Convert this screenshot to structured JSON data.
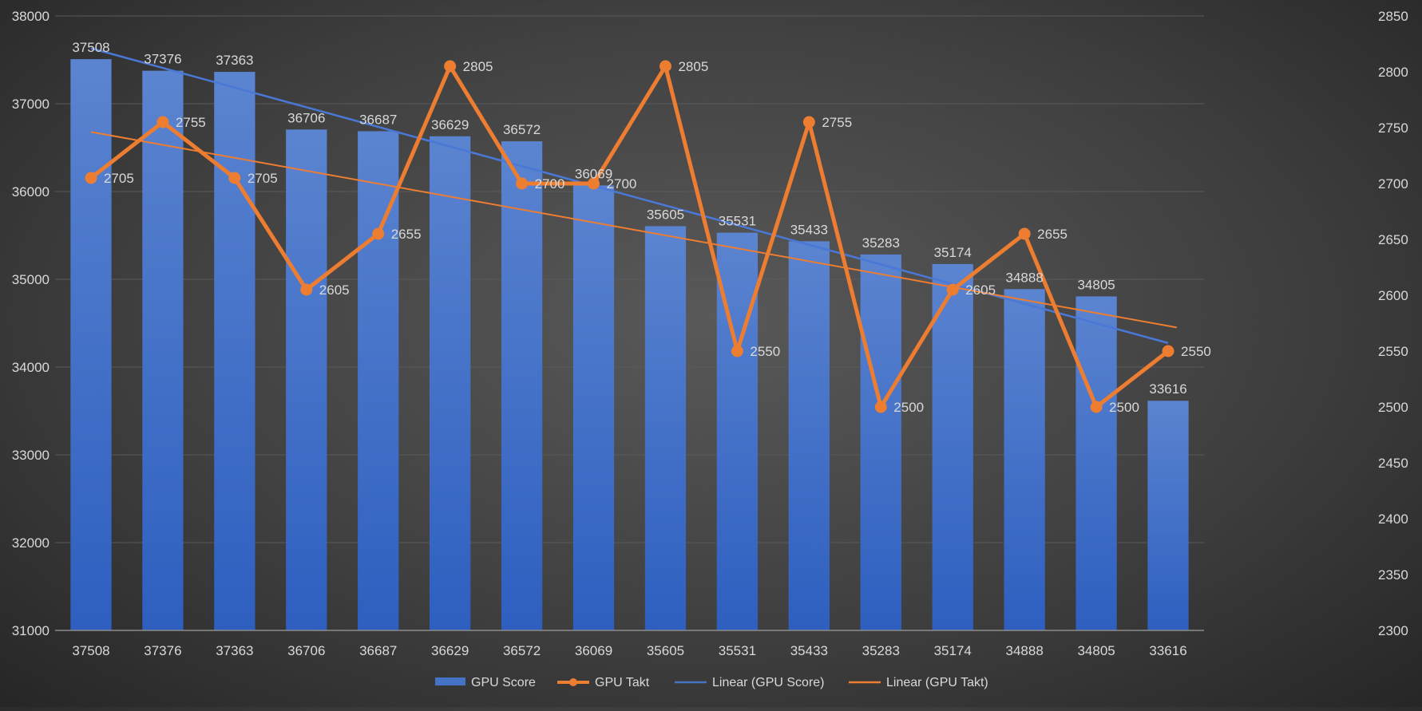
{
  "chart_data": {
    "type": "bar",
    "categories": [
      "37508",
      "37376",
      "37363",
      "36706",
      "36687",
      "36629",
      "36572",
      "36069",
      "35605",
      "35531",
      "35433",
      "35283",
      "35174",
      "34888",
      "34805",
      "33616"
    ],
    "series": [
      {
        "name": "GPU Score",
        "type": "bar",
        "axis": "left",
        "values": [
          37508,
          37376,
          37363,
          36706,
          36687,
          36629,
          36572,
          36069,
          35605,
          35531,
          35433,
          35283,
          35174,
          34888,
          34805,
          33616
        ]
      },
      {
        "name": "GPU Takt",
        "type": "line",
        "axis": "right",
        "values": [
          2705,
          2755,
          2705,
          2605,
          2655,
          2805,
          2700,
          2700,
          2805,
          2550,
          2755,
          2500,
          2605,
          2655,
          2500,
          2550
        ]
      },
      {
        "name": "Linear (GPU Score)",
        "type": "trendline",
        "of": "GPU Score"
      },
      {
        "name": "Linear (GPU Takt)",
        "type": "trendline",
        "of": "GPU Takt"
      }
    ],
    "y_left": {
      "min": 31000,
      "max": 38000,
      "step": 1000
    },
    "y_right": {
      "min": 2300,
      "max": 2850,
      "step": 50
    },
    "legend_position": "bottom",
    "grid": true,
    "colors": {
      "bar": "#4472C4",
      "line": "#ED7D31",
      "trend_score": "#4472C4",
      "trend_takt": "#ED7D31",
      "text": "#D9D9D9",
      "grid": "#5A5A5A"
    }
  }
}
